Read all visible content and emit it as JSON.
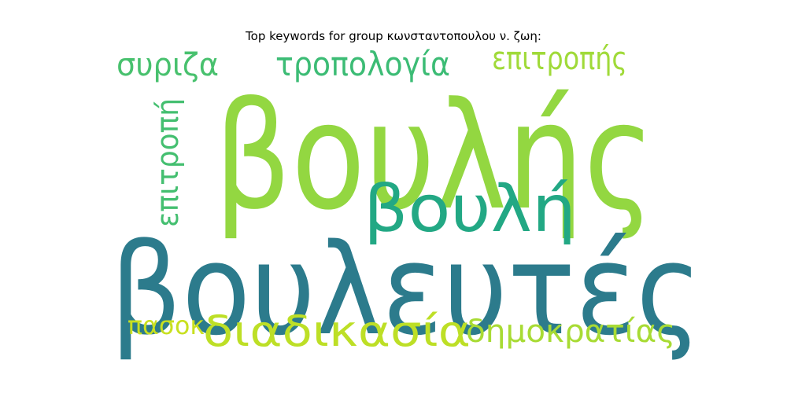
{
  "chart_data": {
    "type": "wordcloud",
    "title": "Top keywords for group κωνσταντοπουλου ν. ζωη:",
    "words": [
      {
        "text": "βουλής",
        "color": "#93d741"
      },
      {
        "text": "βουλευτές",
        "color": "#2c7b8c"
      },
      {
        "text": "βουλή",
        "color": "#22a884"
      },
      {
        "text": "διαδικασία",
        "color": "#bddf26"
      },
      {
        "text": "τροπολογία",
        "color": "#3cbc75"
      },
      {
        "text": "επιτροπής",
        "color": "#a0da39"
      },
      {
        "text": "συριζα",
        "color": "#48c16e"
      },
      {
        "text": "επιτροπή",
        "color": "#44bf70"
      },
      {
        "text": "δημοκρατίας",
        "color": "#a8db34"
      },
      {
        "text": "πασοκ",
        "color": "#c8e020"
      }
    ]
  }
}
